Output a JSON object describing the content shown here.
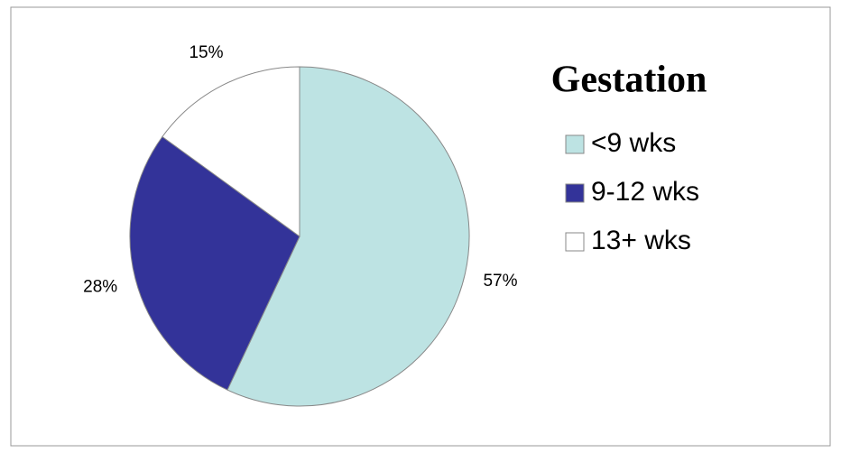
{
  "chart_data": {
    "type": "pie",
    "title": "Gestation",
    "categories": [
      "<9 wks",
      "9-12 wks",
      "13+ wks"
    ],
    "values": [
      57,
      28,
      15
    ],
    "value_labels": [
      "57%",
      "28%",
      "15%"
    ],
    "colors": [
      "#bde3e3",
      "#333399",
      "#ffffff"
    ],
    "legend": "right"
  }
}
